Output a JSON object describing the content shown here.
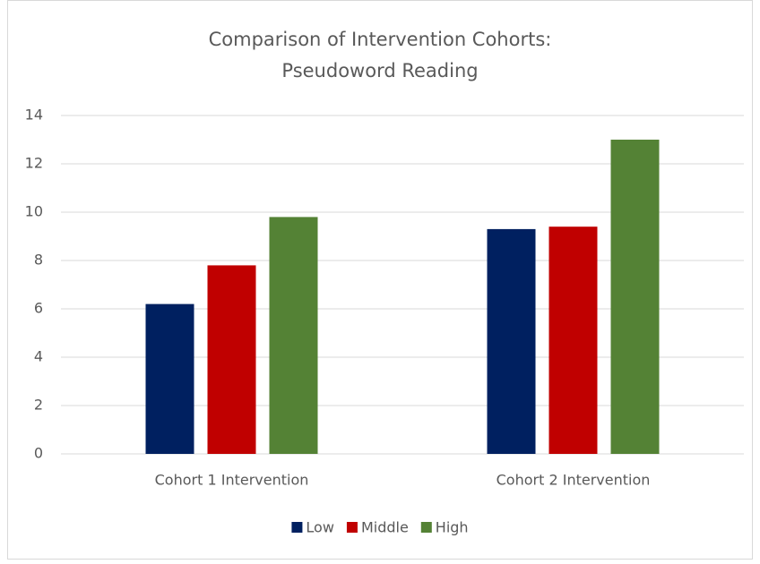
{
  "chart_data": {
    "type": "bar",
    "title": [
      "Comparison of Intervention Cohorts:",
      "Pseudoword Reading"
    ],
    "categories": [
      "Cohort 1 Intervention",
      "Cohort 2 Intervention"
    ],
    "series": [
      {
        "name": "Low",
        "color": "#002060",
        "values": [
          6.2,
          9.3
        ]
      },
      {
        "name": "Middle",
        "color": "#c00000",
        "values": [
          7.8,
          9.4
        ]
      },
      {
        "name": "High",
        "color": "#548235",
        "values": [
          9.8,
          13.0
        ]
      }
    ],
    "ylim": [
      0,
      14
    ],
    "yticks": [
      0,
      2,
      4,
      6,
      8,
      10,
      12,
      14
    ],
    "grid": true,
    "legend": "bottom"
  }
}
